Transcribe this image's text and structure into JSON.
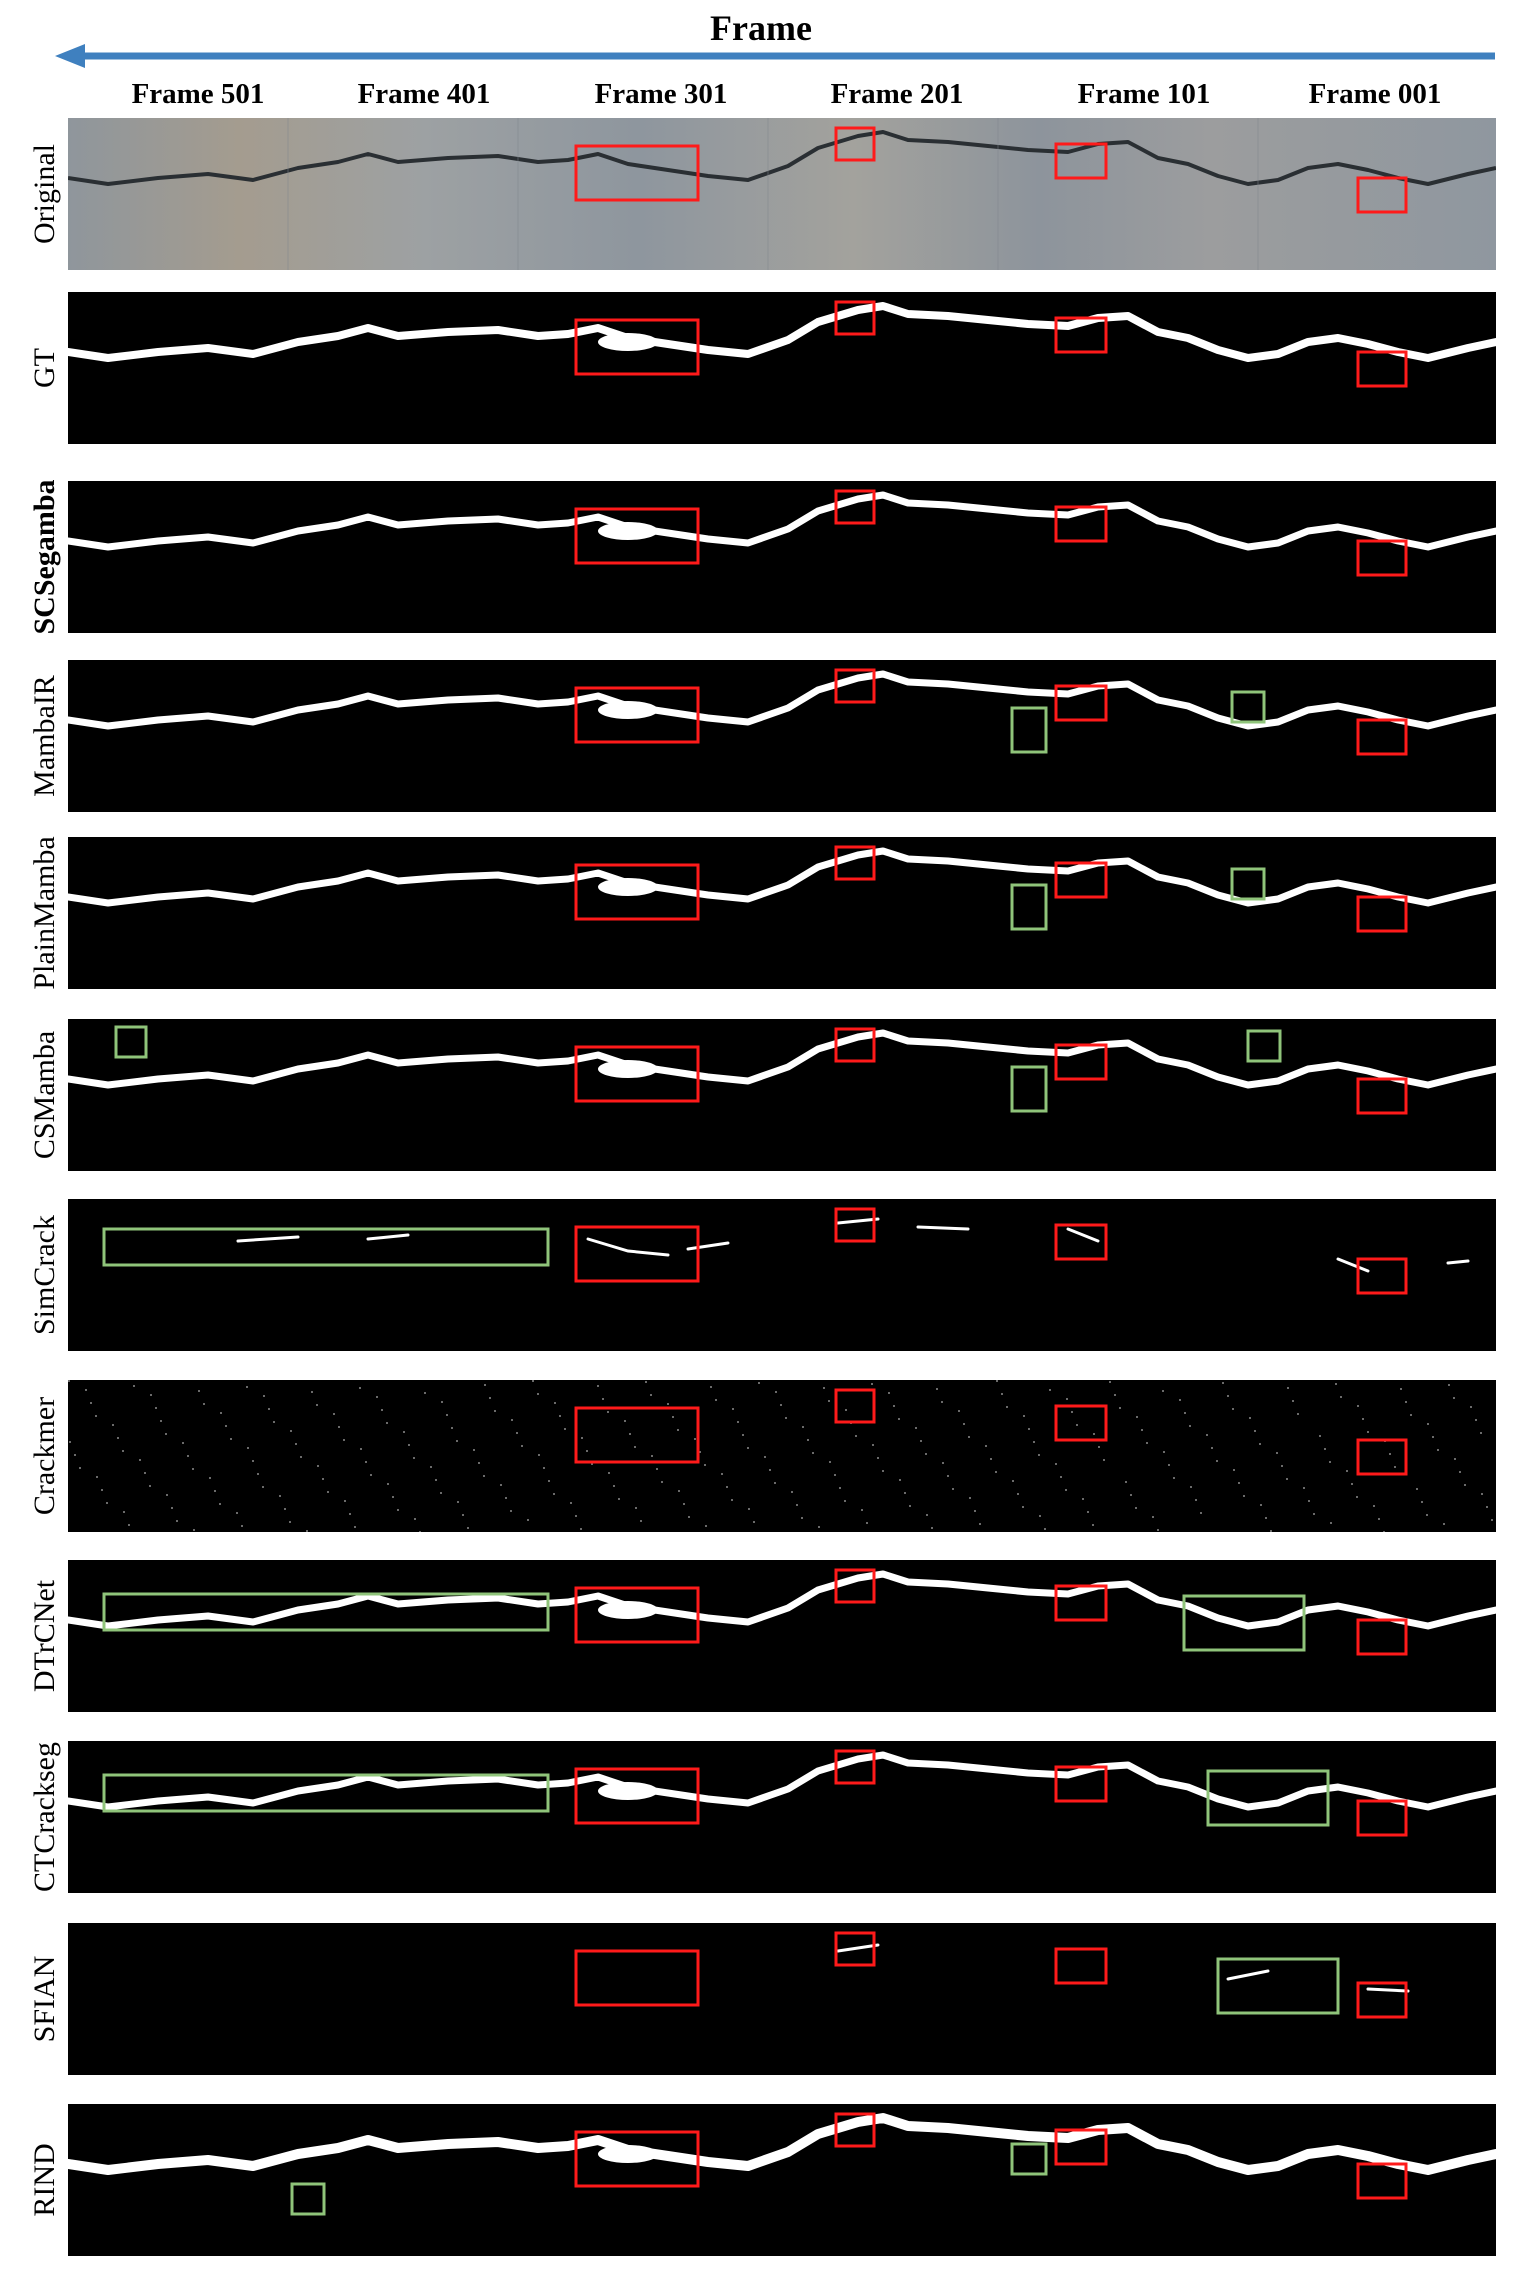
{
  "header": {
    "title": "Frame"
  },
  "colors": {
    "arrow": "#3f80bf",
    "highlight": "#ff1a1a",
    "false_detection": "#8fc47a",
    "crack": "#ffffff",
    "background": "#000000"
  },
  "frame_labels": [
    "Frame 501",
    "Frame 401",
    "Frame 301",
    "Frame 201",
    "Frame 101",
    "Frame 001"
  ],
  "rows": [
    {
      "label": "Original",
      "bold": false
    },
    {
      "label": "GT",
      "bold": false
    },
    {
      "label": "SCSegamba",
      "bold": true
    },
    {
      "label": "MambaIR",
      "bold": false
    },
    {
      "label": "PlainMamba",
      "bold": false
    },
    {
      "label": "CSMamba",
      "bold": false
    },
    {
      "label": "SimCrack",
      "bold": false
    },
    {
      "label": "Crackmer",
      "bold": false
    },
    {
      "label": "DTrCNet",
      "bold": false
    },
    {
      "label": "CTCrackseg",
      "bold": false
    },
    {
      "label": "SFIAN",
      "bold": false
    },
    {
      "label": "RIND",
      "bold": false
    }
  ]
}
